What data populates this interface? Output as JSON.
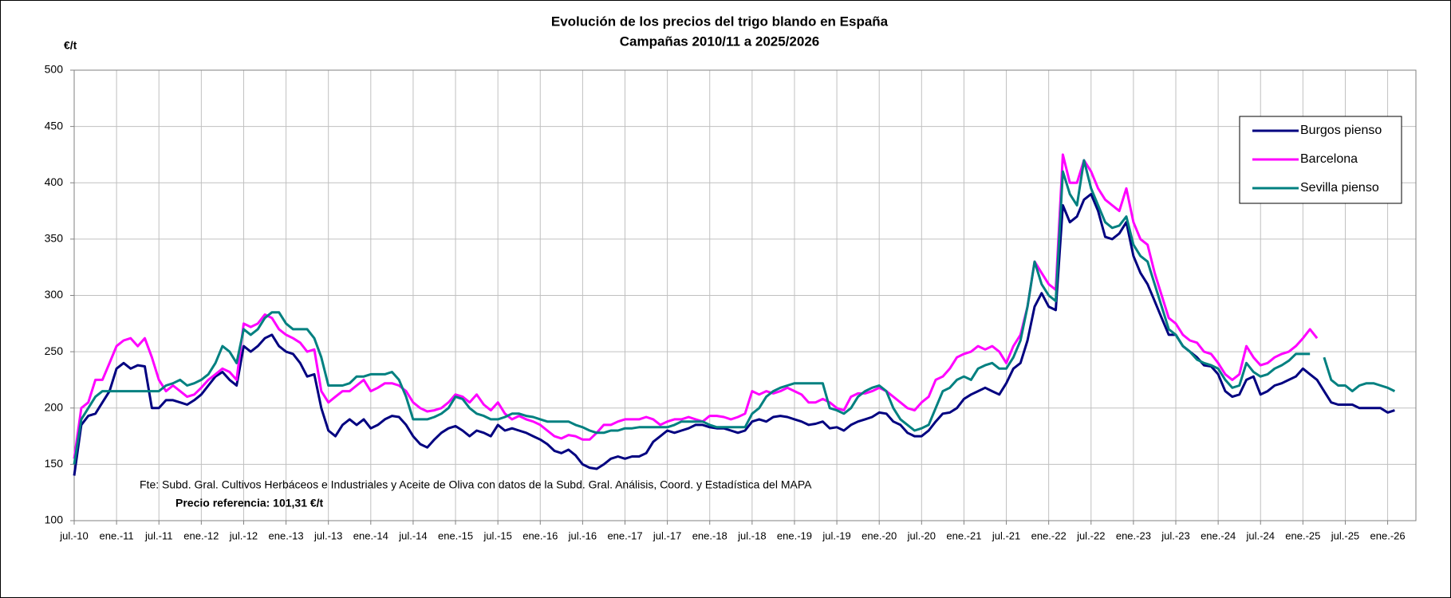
{
  "chart_data": {
    "type": "line",
    "title": "Evolución de los precios del trigo blando en España",
    "subtitle": "Campañas 2010/11 a 2025/2026",
    "y_label": "€/t",
    "annotations": [
      "Fte: Subd. Gral. Cultivos Herbáceos e Industriales y Aceite de Oliva con datos de la Subd. Gral. Análisis, Coord. y Estadística del MAPA",
      "Precio referencia: 101,31 €/t"
    ],
    "grid": true,
    "legend": "upper right",
    "ylim": [
      100,
      500
    ],
    "yticks": [
      100,
      150,
      200,
      250,
      300,
      350,
      400,
      450,
      500
    ],
    "xlim": [
      "2010-07",
      "2026-05"
    ],
    "xticks": [
      {
        "value": "2010-07",
        "label": "jul.-10"
      },
      {
        "value": "2011-01",
        "label": "ene.-11"
      },
      {
        "value": "2011-07",
        "label": "jul.-11"
      },
      {
        "value": "2012-01",
        "label": "ene.-12"
      },
      {
        "value": "2012-07",
        "label": "jul.-12"
      },
      {
        "value": "2013-01",
        "label": "ene.-13"
      },
      {
        "value": "2013-07",
        "label": "jul.-13"
      },
      {
        "value": "2014-01",
        "label": "ene.-14"
      },
      {
        "value": "2014-07",
        "label": "jul.-14"
      },
      {
        "value": "2015-01",
        "label": "ene.-15"
      },
      {
        "value": "2015-07",
        "label": "jul.-15"
      },
      {
        "value": "2016-01",
        "label": "ene.-16"
      },
      {
        "value": "2016-07",
        "label": "jul.-16"
      },
      {
        "value": "2017-01",
        "label": "ene.-17"
      },
      {
        "value": "2017-07",
        "label": "jul.-17"
      },
      {
        "value": "2018-01",
        "label": "ene.-18"
      },
      {
        "value": "2018-07",
        "label": "jul.-18"
      },
      {
        "value": "2019-01",
        "label": "ene.-19"
      },
      {
        "value": "2019-07",
        "label": "jul.-19"
      },
      {
        "value": "2020-01",
        "label": "ene.-20"
      },
      {
        "value": "2020-07",
        "label": "jul.-20"
      },
      {
        "value": "2021-01",
        "label": "ene.-21"
      },
      {
        "value": "2021-07",
        "label": "jul.-21"
      },
      {
        "value": "2022-01",
        "label": "ene.-22"
      },
      {
        "value": "2022-07",
        "label": "jul.-22"
      },
      {
        "value": "2023-01",
        "label": "ene.-23"
      },
      {
        "value": "2023-07",
        "label": "jul.-23"
      },
      {
        "value": "2024-01",
        "label": "ene.-24"
      },
      {
        "value": "2024-07",
        "label": "jul.-24"
      },
      {
        "value": "2025-01",
        "label": "ene.-25"
      },
      {
        "value": "2025-07",
        "label": "jul.-25"
      },
      {
        "value": "2026-01",
        "label": "ene.-26"
      }
    ],
    "x": [
      "2010-07",
      "2010-08",
      "2010-09",
      "2010-10",
      "2010-11",
      "2010-12",
      "2011-01",
      "2011-02",
      "2011-03",
      "2011-04",
      "2011-05",
      "2011-06",
      "2011-07",
      "2011-08",
      "2011-09",
      "2011-10",
      "2011-11",
      "2011-12",
      "2012-01",
      "2012-02",
      "2012-03",
      "2012-04",
      "2012-05",
      "2012-06",
      "2012-07",
      "2012-08",
      "2012-09",
      "2012-10",
      "2012-11",
      "2012-12",
      "2013-01",
      "2013-02",
      "2013-03",
      "2013-04",
      "2013-05",
      "2013-06",
      "2013-07",
      "2013-08",
      "2013-09",
      "2013-10",
      "2013-11",
      "2013-12",
      "2014-01",
      "2014-02",
      "2014-03",
      "2014-04",
      "2014-05",
      "2014-06",
      "2014-07",
      "2014-08",
      "2014-09",
      "2014-10",
      "2014-11",
      "2014-12",
      "2015-01",
      "2015-02",
      "2015-03",
      "2015-04",
      "2015-05",
      "2015-06",
      "2015-07",
      "2015-08",
      "2015-09",
      "2015-10",
      "2015-11",
      "2015-12",
      "2016-01",
      "2016-02",
      "2016-03",
      "2016-04",
      "2016-05",
      "2016-06",
      "2016-07",
      "2016-08",
      "2016-09",
      "2016-10",
      "2016-11",
      "2016-12",
      "2017-01",
      "2017-02",
      "2017-03",
      "2017-04",
      "2017-05",
      "2017-06",
      "2017-07",
      "2017-08",
      "2017-09",
      "2017-10",
      "2017-11",
      "2017-12",
      "2018-01",
      "2018-02",
      "2018-03",
      "2018-04",
      "2018-05",
      "2018-06",
      "2018-07",
      "2018-08",
      "2018-09",
      "2018-10",
      "2018-11",
      "2018-12",
      "2019-01",
      "2019-02",
      "2019-03",
      "2019-04",
      "2019-05",
      "2019-06",
      "2019-07",
      "2019-08",
      "2019-09",
      "2019-10",
      "2019-11",
      "2019-12",
      "2020-01",
      "2020-02",
      "2020-03",
      "2020-04",
      "2020-05",
      "2020-06",
      "2020-07",
      "2020-08",
      "2020-09",
      "2020-10",
      "2020-11",
      "2020-12",
      "2021-01",
      "2021-02",
      "2021-03",
      "2021-04",
      "2021-05",
      "2021-06",
      "2021-07",
      "2021-08",
      "2021-09",
      "2021-10",
      "2021-11",
      "2021-12",
      "2022-01",
      "2022-02",
      "2022-03",
      "2022-04",
      "2022-05",
      "2022-06",
      "2022-07",
      "2022-08",
      "2022-09",
      "2022-10",
      "2022-11",
      "2022-12",
      "2023-01",
      "2023-02",
      "2023-03",
      "2023-04",
      "2023-05",
      "2023-06",
      "2023-07",
      "2023-08",
      "2023-09",
      "2023-10",
      "2023-11",
      "2023-12",
      "2024-01",
      "2024-02",
      "2024-03",
      "2024-04",
      "2024-05",
      "2024-06",
      "2024-07",
      "2024-08",
      "2024-09",
      "2024-10",
      "2024-11",
      "2024-12",
      "2025-01",
      "2025-02",
      "2025-03",
      "2025-04",
      "2025-05",
      "2025-06",
      "2025-07",
      "2025-08",
      "2025-09",
      "2025-10",
      "2025-11",
      "2025-12",
      "2026-01",
      "2026-02"
    ],
    "series": [
      {
        "name": "Burgos pienso",
        "color": "#000080",
        "values": [
          140,
          185,
          193,
          195,
          205,
          215,
          235,
          240,
          235,
          238,
          237,
          200,
          200,
          207,
          207,
          205,
          203,
          207,
          212,
          220,
          228,
          232,
          225,
          220,
          255,
          250,
          255,
          262,
          265,
          255,
          250,
          248,
          240,
          228,
          230,
          200,
          180,
          175,
          185,
          190,
          185,
          190,
          182,
          185,
          190,
          193,
          192,
          185,
          175,
          168,
          165,
          172,
          178,
          182,
          184,
          180,
          175,
          180,
          178,
          175,
          185,
          180,
          182,
          180,
          178,
          175,
          172,
          168,
          162,
          160,
          163,
          158,
          150,
          147,
          146,
          150,
          155,
          157,
          155,
          157,
          157,
          160,
          170,
          175,
          180,
          178,
          180,
          182,
          185,
          185,
          183,
          182,
          182,
          180,
          178,
          180,
          188,
          190,
          188,
          192,
          193,
          192,
          190,
          188,
          185,
          186,
          188,
          182,
          183,
          180,
          185,
          188,
          190,
          192,
          196,
          195,
          188,
          185,
          178,
          175,
          175,
          180,
          188,
          195,
          196,
          200,
          208,
          212,
          215,
          218,
          215,
          212,
          222,
          235,
          240,
          260,
          290,
          302,
          290,
          287,
          380,
          365,
          370,
          385,
          390,
          375,
          352,
          350,
          355,
          365,
          335,
          320,
          310,
          295,
          280,
          265,
          265,
          255,
          250,
          245,
          238,
          237,
          230,
          215,
          210,
          212,
          225,
          228,
          212,
          215,
          220,
          222,
          225,
          228,
          235,
          230,
          225,
          215,
          205,
          203,
          203,
          203,
          200,
          200,
          200,
          200,
          196,
          198
        ]
      },
      {
        "name": "Barcelona",
        "color": "#ff00ff",
        "values": [
          155,
          200,
          205,
          225,
          225,
          240,
          255,
          260,
          262,
          255,
          262,
          245,
          225,
          215,
          220,
          215,
          210,
          212,
          218,
          225,
          230,
          235,
          232,
          225,
          275,
          272,
          275,
          283,
          280,
          270,
          265,
          262,
          258,
          250,
          252,
          215,
          205,
          210,
          215,
          215,
          220,
          225,
          215,
          218,
          222,
          222,
          220,
          215,
          205,
          200,
          197,
          198,
          200,
          205,
          212,
          210,
          205,
          212,
          203,
          198,
          205,
          195,
          190,
          193,
          190,
          188,
          185,
          180,
          175,
          173,
          176,
          175,
          172,
          172,
          178,
          185,
          185,
          188,
          190,
          190,
          190,
          192,
          190,
          185,
          188,
          190,
          190,
          192,
          190,
          188,
          193,
          193,
          192,
          190,
          192,
          195,
          215,
          212,
          215,
          213,
          215,
          218,
          215,
          212,
          205,
          205,
          208,
          205,
          200,
          198,
          210,
          213,
          213,
          215,
          218,
          215,
          210,
          205,
          200,
          198,
          205,
          210,
          225,
          228,
          235,
          245,
          248,
          250,
          255,
          252,
          255,
          250,
          240,
          255,
          265,
          290,
          330,
          320,
          310,
          305,
          425,
          400,
          400,
          420,
          410,
          395,
          385,
          380,
          375,
          395,
          365,
          350,
          345,
          320,
          300,
          280,
          275,
          265,
          260,
          258,
          250,
          248,
          240,
          230,
          225,
          230,
          255,
          245,
          238,
          240,
          245,
          248,
          250,
          255,
          262,
          270,
          262,
          null,
          null,
          null,
          null,
          null,
          null,
          null,
          null,
          null,
          null,
          null
        ]
      },
      {
        "name": "Sevilla pienso",
        "color": "#008080",
        "values": [
          150,
          190,
          200,
          210,
          215,
          215,
          215,
          215,
          215,
          215,
          215,
          215,
          215,
          220,
          222,
          225,
          220,
          222,
          225,
          230,
          240,
          255,
          250,
          240,
          270,
          265,
          270,
          280,
          285,
          285,
          275,
          270,
          270,
          270,
          262,
          245,
          220,
          220,
          220,
          222,
          228,
          228,
          230,
          230,
          230,
          232,
          225,
          210,
          190,
          190,
          190,
          192,
          195,
          200,
          210,
          208,
          200,
          195,
          193,
          190,
          190,
          192,
          195,
          195,
          193,
          192,
          190,
          188,
          188,
          188,
          188,
          185,
          183,
          180,
          178,
          178,
          180,
          180,
          182,
          182,
          183,
          183,
          183,
          183,
          183,
          185,
          188,
          188,
          188,
          188,
          185,
          183,
          183,
          183,
          183,
          183,
          195,
          200,
          210,
          215,
          218,
          220,
          222,
          222,
          222,
          222,
          222,
          200,
          198,
          195,
          200,
          210,
          215,
          218,
          220,
          215,
          200,
          190,
          185,
          180,
          182,
          185,
          200,
          215,
          218,
          225,
          228,
          225,
          235,
          238,
          240,
          235,
          235,
          245,
          260,
          290,
          330,
          310,
          300,
          295,
          410,
          390,
          380,
          420,
          395,
          380,
          365,
          360,
          362,
          370,
          345,
          335,
          330,
          310,
          290,
          270,
          265,
          255,
          250,
          243,
          240,
          238,
          235,
          225,
          218,
          220,
          240,
          232,
          228,
          230,
          235,
          238,
          242,
          248,
          248,
          248,
          null,
          245,
          225,
          220,
          220,
          215,
          220,
          222,
          222,
          220,
          218,
          215
        ]
      }
    ]
  }
}
